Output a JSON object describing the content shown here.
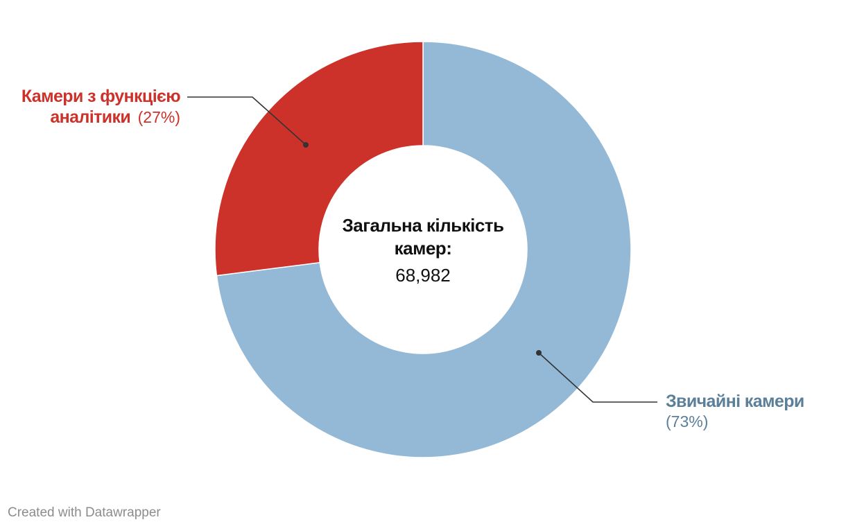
{
  "chart_data": {
    "type": "pie",
    "variant": "donut",
    "center": {
      "title_line1": "Загальна кількість",
      "title_line2": "камер:",
      "value": "68,982"
    },
    "slices": [
      {
        "label_line1": "Звичайні камери",
        "label_line2": "",
        "percent_label": "(73%)",
        "value": 73,
        "color": "#93b9d6",
        "label_color": "#5b7f99"
      },
      {
        "label_line1": "Камери з функцією",
        "label_line2": "аналітики",
        "percent_label": "(27%)",
        "value": 27,
        "color": "#cc322a",
        "label_color": "#cc322a"
      }
    ]
  },
  "footer": {
    "credit": "Created with Datawrapper"
  }
}
